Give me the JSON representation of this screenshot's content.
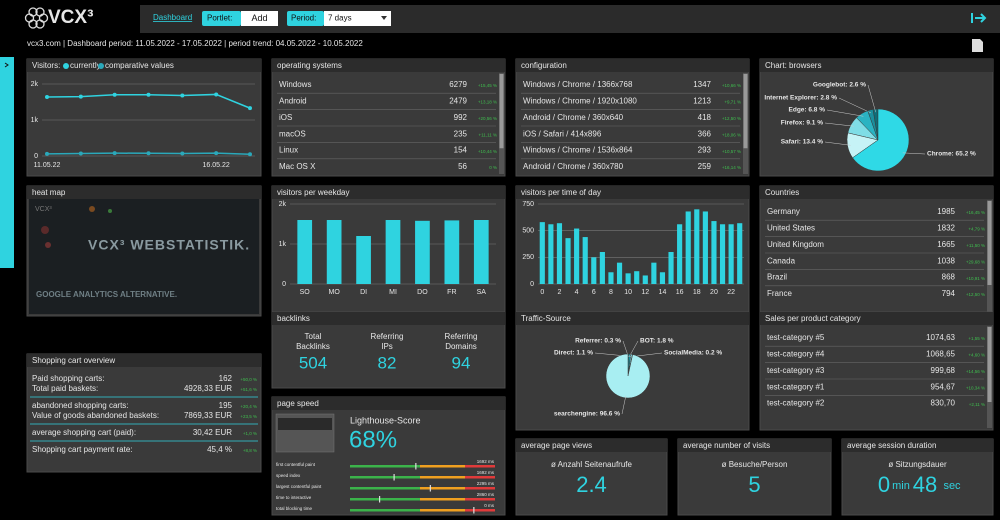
{
  "header": {
    "logo": "VCX³",
    "nav": "Dashboard",
    "portlet_label": "Portlet:",
    "add": "Add",
    "period_label": "Period:",
    "period": "7 days",
    "info": "vcx3.com | Dashboard period: 11.05.2022 - 17.05.2022 | period trend: 04.05.2022 - 10.05.2022"
  },
  "chart_data": [
    {
      "type": "line",
      "title": "Visitors:",
      "categories": [
        "11.05.22",
        null,
        null,
        null,
        null,
        "16.05.22",
        null
      ],
      "series": [
        {
          "name": "currently",
          "color": "#2fd3e0",
          "values": [
            1640,
            1650,
            1700,
            1700,
            1680,
            1710,
            1330
          ]
        },
        {
          "name": "comparative values",
          "color": "#2aa8ba",
          "values": [
            60,
            70,
            80,
            75,
            70,
            80,
            50
          ]
        }
      ],
      "ylim": [
        0,
        2000
      ],
      "yticks": [
        0,
        {
          "value": 1000,
          "label": "1k"
        },
        {
          "value": 2000,
          "label": "2k"
        }
      ],
      "grid": true
    },
    {
      "type": "pie",
      "title": "Chart: browsers",
      "labels": [
        "Googlebot: 2.6 %",
        "Internet Explorer: 2.8 %",
        "Edge: 6.8 %",
        "Firefox: 9.1 %",
        "Safari: 13.4 %",
        "Chrome: 65.2 %"
      ],
      "values": [
        2.6,
        2.8,
        6.8,
        9.1,
        13.4,
        65.2
      ],
      "colors": [
        "#0f6d78",
        "#1b8e9c",
        "#2bb3c2",
        "#7fdde6",
        "#c6f3f6",
        "#2fd9e6"
      ]
    },
    {
      "type": "bar",
      "title": "visitors per weekday",
      "categories": [
        "SO",
        "MO",
        "DI",
        "MI",
        "DO",
        "FR",
        "SA"
      ],
      "values": [
        1600,
        1600,
        1200,
        1600,
        1580,
        1590,
        1600
      ],
      "color": "#2fd3e0",
      "ylim": [
        0,
        2000
      ],
      "yticks": [
        0,
        {
          "value": 1000,
          "label": "1k"
        },
        {
          "value": 2000,
          "label": "2k"
        }
      ],
      "grid": true
    },
    {
      "type": "bar",
      "title": "visitors per time of day",
      "categories": [
        "0",
        null,
        "2",
        null,
        "4",
        null,
        "6",
        null,
        "8",
        null,
        "10",
        null,
        "12",
        null,
        "14",
        null,
        "16",
        null,
        "18",
        null,
        "20",
        null,
        "22",
        null
      ],
      "values": [
        580,
        560,
        570,
        430,
        520,
        440,
        250,
        300,
        110,
        200,
        100,
        120,
        80,
        200,
        110,
        300,
        560,
        680,
        700,
        680,
        590,
        560,
        560,
        570
      ],
      "color": "#2fd3e0",
      "ylim": [
        0,
        750
      ],
      "yticks": [
        0,
        250,
        500,
        750
      ],
      "grid": true
    },
    {
      "type": "pie",
      "title": "Traffic-Source",
      "labels": [
        "Referrer: 0.3 %",
        "BOT: 1.8 %",
        "Direct: 1.1 %",
        "SocialMedia: 0.2 %",
        "searchengine: 96.6 %"
      ],
      "values": [
        0.3,
        1.8,
        1.1,
        0.2,
        96.6
      ],
      "colors": [
        "#2fd3e0",
        "#1b8e9c",
        "#7fdde6",
        "#2bb3c2",
        "#a8eef2"
      ]
    }
  ],
  "tables": [
    {
      "title": "operating systems",
      "rows": [
        [
          "Windows",
          "6279",
          "+15,45 %"
        ],
        [
          "Android",
          "2479",
          "+13,18 %"
        ],
        [
          "iOS",
          "992",
          "+20,56 %"
        ],
        [
          "macOS",
          "235",
          "+11,11 %"
        ],
        [
          "Linux",
          "154",
          "+10,44 %"
        ],
        [
          "Mac OS X",
          "56",
          "0 %"
        ]
      ]
    },
    {
      "title": "configuration",
      "rows": [
        [
          "Windows / Chrome / 1366x768",
          "1347",
          "+10,66 %"
        ],
        [
          "Windows / Chrome / 1920x1080",
          "1213",
          "+9,71 %"
        ],
        [
          "Android / Chrome / 360x640",
          "418",
          "+12,50 %"
        ],
        [
          "iOS / Safari / 414x896",
          "366",
          "+18,06 %"
        ],
        [
          "Windows / Chrome / 1536x864",
          "293",
          "+10,57 %"
        ],
        [
          "Android / Chrome / 360x780",
          "259",
          "+16,14 %"
        ]
      ]
    },
    {
      "title": "Countries",
      "rows": [
        [
          "Germany",
          "1985",
          "+16,45 %"
        ],
        [
          "United States",
          "1832",
          "+4,79 %"
        ],
        [
          "United Kingdom",
          "1665",
          "+11,50 %"
        ],
        [
          "Canada",
          "1038",
          "+29,68 %"
        ],
        [
          "Brazil",
          "868",
          "+10,91 %"
        ],
        [
          "France",
          "794",
          "+12,50 %"
        ]
      ]
    },
    {
      "title": "Sales per product category",
      "rows": [
        [
          "test-category #5",
          "1074,63",
          "+1,55 %"
        ],
        [
          "test-category #4",
          "1068,65",
          "+4,60 %"
        ],
        [
          "test-category #3",
          "999,68",
          "+14,56 %"
        ],
        [
          "test-category #1",
          "954,67",
          "+10,34 %"
        ],
        [
          "test-category #2",
          "830,70",
          "+2,11 %"
        ]
      ]
    }
  ],
  "heatmap": {
    "title": "heat map",
    "logo": "VCX³",
    "headline": "VCX³ WEBSTATISTIK.",
    "tagline": "GOOGLE ANALYTICS ALTERNATIVE."
  },
  "shopping_cart": {
    "title": "Shopping cart overview",
    "rows": [
      [
        "Paid shopping carts:",
        "162",
        "+50,0 %"
      ],
      [
        "Total paid baskets:",
        "4928,33 EUR",
        "+51,6 %"
      ],
      [
        "abandoned shopping carts:",
        "195",
        "+20,4 %"
      ],
      [
        "Value of goods abandoned baskets:",
        "7869,33 EUR",
        "+23,5 %"
      ],
      [
        "average shopping cart (paid):",
        "30,42 EUR",
        "+1,0 %"
      ],
      [
        "Shopping cart payment rate:",
        "45,4 %",
        "+8,8 %"
      ]
    ]
  },
  "backlinks": {
    "title": "backlinks",
    "items": [
      {
        "label": [
          "Total",
          "Backlinks"
        ],
        "value": "504"
      },
      {
        "label": [
          "Referring",
          "IPs"
        ],
        "value": "82"
      },
      {
        "label": [
          "Referring",
          "Domains"
        ],
        "value": "94"
      }
    ]
  },
  "page_speed": {
    "title": "page speed",
    "score_label": "Lighthouse-Score",
    "score": "68%",
    "metrics": [
      {
        "label": "first contentful paint",
        "value": "1692 ms"
      },
      {
        "label": "speed index",
        "value": "1692 ms"
      },
      {
        "label": "largest contentful paint",
        "value": "2295 ms"
      },
      {
        "label": "time to interactive",
        "value": "2860 ms"
      },
      {
        "label": "total blocking time",
        "value": "0 ms"
      }
    ]
  },
  "kpis": [
    {
      "title": "average page views",
      "label": "ø Anzahl Seitenaufrufe",
      "value": "2.4"
    },
    {
      "title": "average number of visits",
      "label": "ø Besuche/Person",
      "value": "5"
    },
    {
      "title": "average session duration",
      "label": "ø Sitzungsdauer",
      "parts": [
        "0",
        "min",
        "48",
        "sec"
      ]
    }
  ]
}
